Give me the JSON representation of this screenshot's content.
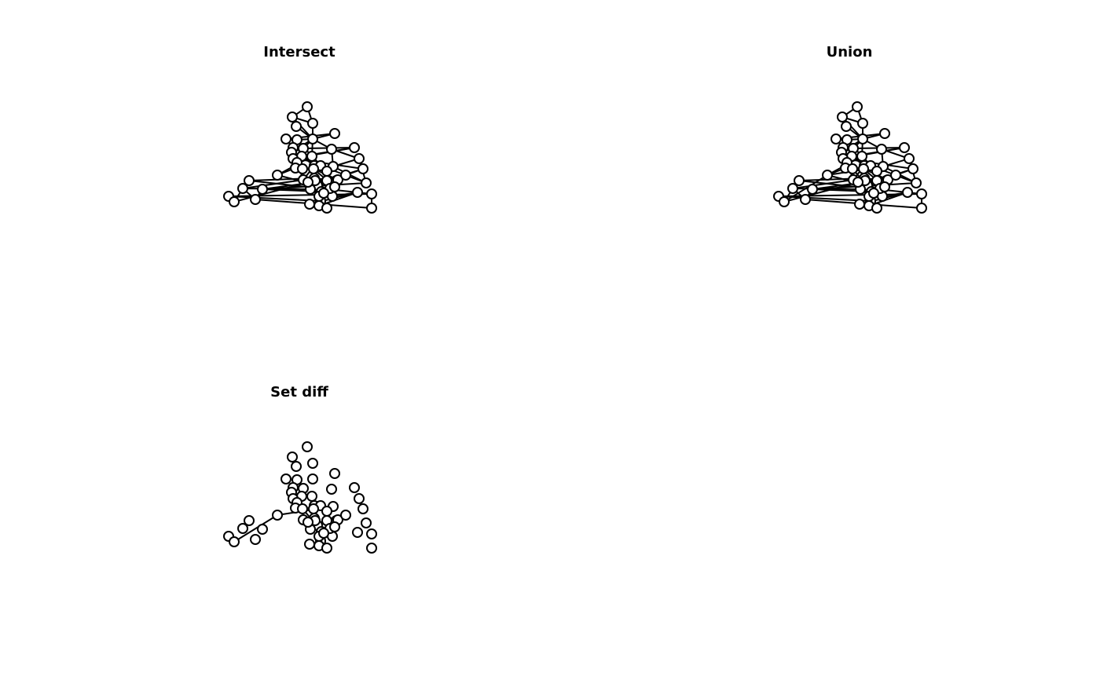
{
  "panels": [
    {
      "id": "intersect",
      "title": "Intersect",
      "edge_set": "intersect"
    },
    {
      "id": "union",
      "title": "Union",
      "edge_set": "union"
    },
    {
      "id": "setdiff",
      "title": "Set diff",
      "edge_set": "setdiff"
    }
  ],
  "graph": {
    "node_count": 57,
    "edges_intersect": [
      [
        0,
        1
      ],
      [
        0,
        2
      ],
      [
        1,
        2
      ],
      [
        1,
        6
      ],
      [
        2,
        6
      ],
      [
        3,
        6
      ],
      [
        4,
        5
      ],
      [
        4,
        6
      ],
      [
        5,
        7
      ],
      [
        5,
        8
      ],
      [
        6,
        7
      ],
      [
        6,
        9
      ],
      [
        6,
        10
      ],
      [
        6,
        11
      ],
      [
        6,
        13
      ],
      [
        7,
        9
      ],
      [
        7,
        13
      ],
      [
        8,
        11
      ],
      [
        8,
        16
      ],
      [
        9,
        11
      ],
      [
        9,
        12
      ],
      [
        10,
        15
      ],
      [
        10,
        21
      ],
      [
        11,
        16
      ],
      [
        12,
        14
      ],
      [
        12,
        16
      ],
      [
        13,
        14
      ],
      [
        13,
        18
      ],
      [
        13,
        19
      ],
      [
        13,
        23
      ],
      [
        13,
        24
      ],
      [
        14,
        17
      ],
      [
        14,
        18
      ],
      [
        14,
        19
      ],
      [
        15,
        21
      ],
      [
        15,
        22
      ],
      [
        15,
        28
      ],
      [
        16,
        20
      ],
      [
        16,
        22
      ],
      [
        17,
        25
      ],
      [
        18,
        25
      ],
      [
        18,
        26
      ],
      [
        19,
        24
      ],
      [
        19,
        28
      ],
      [
        20,
        23
      ],
      [
        21,
        28
      ],
      [
        22,
        29
      ],
      [
        22,
        30
      ],
      [
        23,
        30
      ],
      [
        24,
        29
      ],
      [
        25,
        26
      ],
      [
        25,
        27
      ],
      [
        25,
        31
      ],
      [
        25,
        35
      ],
      [
        26,
        27
      ],
      [
        26,
        33
      ],
      [
        27,
        34
      ],
      [
        28,
        36
      ],
      [
        29,
        30
      ],
      [
        29,
        34
      ],
      [
        29,
        36
      ],
      [
        30,
        31
      ],
      [
        30,
        32
      ],
      [
        31,
        32
      ],
      [
        31,
        36
      ],
      [
        32,
        35
      ],
      [
        33,
        38
      ],
      [
        34,
        37
      ],
      [
        35,
        40
      ],
      [
        35,
        41
      ],
      [
        36,
        41
      ],
      [
        37,
        42
      ],
      [
        37,
        44
      ],
      [
        38,
        39
      ],
      [
        38,
        46
      ],
      [
        39,
        43
      ],
      [
        40,
        47
      ],
      [
        41,
        46
      ],
      [
        42,
        44
      ],
      [
        43,
        45
      ],
      [
        44,
        49
      ],
      [
        45,
        48
      ],
      [
        47,
        48
      ],
      [
        49,
        55
      ],
      [
        50,
        51
      ],
      [
        50,
        54
      ],
      [
        51,
        53
      ],
      [
        51,
        56
      ],
      [
        53,
        54
      ],
      [
        55,
        56
      ]
    ],
    "edges_setdiff": [
      [
        21,
        23
      ],
      [
        21,
        52
      ],
      [
        23,
        40
      ],
      [
        52,
        53
      ]
    ]
  }
}
